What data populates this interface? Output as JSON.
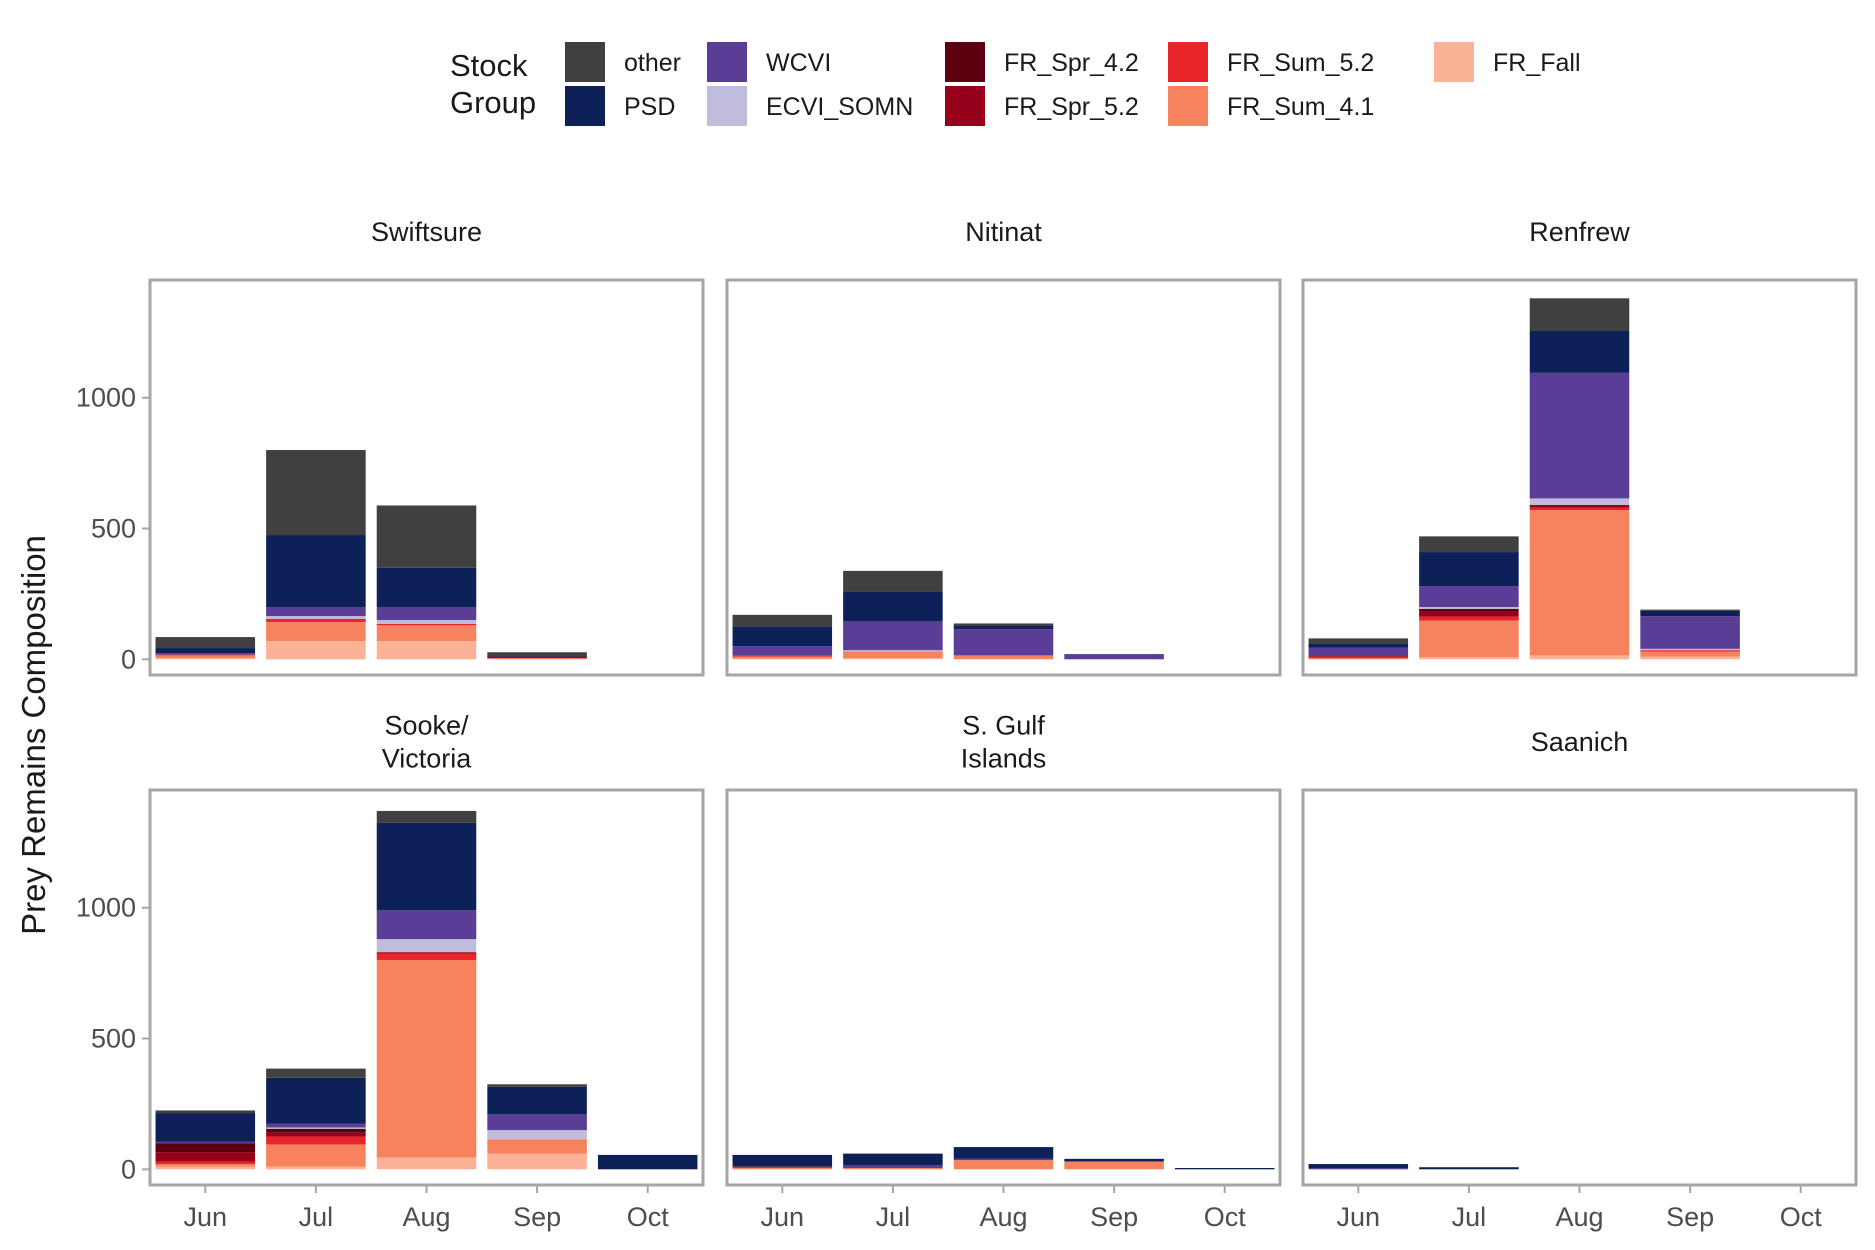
{
  "legend": {
    "title_line1": "Stock",
    "title_line2": "Group",
    "items": [
      {
        "key": "other",
        "label": "other",
        "color": "#404040"
      },
      {
        "key": "PSD",
        "label": "PSD",
        "color": "#0d2158"
      },
      {
        "key": "WCVI",
        "label": "WCVI",
        "color": "#5a3d96"
      },
      {
        "key": "ECVI_SOMN",
        "label": "ECVI_SOMN",
        "color": "#c0bcdc"
      },
      {
        "key": "FR_Spr_4.2",
        "label": "FR_Spr_4.2",
        "color": "#5c0010"
      },
      {
        "key": "FR_Spr_5.2",
        "label": "FR_Spr_5.2",
        "color": "#96001a"
      },
      {
        "key": "FR_Sum_5.2",
        "label": "FR_Sum_5.2",
        "color": "#e8262a"
      },
      {
        "key": "FR_Sum_4.1",
        "label": "FR_Sum_4.1",
        "color": "#f7825e"
      },
      {
        "key": "FR_Fall",
        "label": "FR_Fall",
        "color": "#fbb296"
      }
    ]
  },
  "chart_data": {
    "type": "bar",
    "stacked": true,
    "ylabel": "Prey Remains Composition",
    "xlabel": "",
    "categories": [
      "Jun",
      "Jul",
      "Aug",
      "Sep",
      "Oct"
    ],
    "ylim": [
      -60,
      1450
    ],
    "yticks": [
      0,
      500,
      1000
    ],
    "stack_order_bottom_to_top": [
      "FR_Fall",
      "FR_Sum_4.1",
      "FR_Sum_5.2",
      "FR_Spr_5.2",
      "FR_Spr_4.2",
      "ECVI_SOMN",
      "WCVI",
      "PSD",
      "other"
    ],
    "panels": [
      {
        "title_lines": [
          "Swiftsure"
        ],
        "series": {
          "Jun": {
            "FR_Fall": 5,
            "FR_Sum_4.1": 10,
            "FR_Sum_5.2": 3,
            "WCVI": 5,
            "PSD": 20,
            "other": 42
          },
          "Jul": {
            "FR_Fall": 70,
            "FR_Sum_4.1": 72,
            "FR_Sum_5.2": 13,
            "ECVI_SOMN": 10,
            "WCVI": 35,
            "PSD": 275,
            "other": 325
          },
          "Aug": {
            "FR_Fall": 70,
            "FR_Sum_4.1": 60,
            "FR_Sum_5.2": 5,
            "ECVI_SOMN": 15,
            "WCVI": 50,
            "PSD": 150,
            "other": 238
          },
          "Sep": {
            "FR_Sum_4.1": 5,
            "FR_Spr_5.2": 5,
            "PSD": 5,
            "other": 12
          }
        }
      },
      {
        "title_lines": [
          "Nitinat"
        ],
        "series": {
          "Jun": {
            "FR_Fall": 3,
            "FR_Sum_4.1": 7,
            "FR_Sum_5.2": 5,
            "WCVI": 35,
            "PSD": 75,
            "other": 45
          },
          "Jul": {
            "FR_Fall": 5,
            "FR_Sum_4.1": 25,
            "ECVI_SOMN": 5,
            "WCVI": 110,
            "PSD": 115,
            "other": 78
          },
          "Aug": {
            "FR_Sum_4.1": 15,
            "WCVI": 100,
            "PSD": 15,
            "other": 7
          },
          "Sep": {
            "WCVI": 20
          }
        }
      },
      {
        "title_lines": [
          "Renfrew"
        ],
        "series": {
          "Jun": {
            "FR_Sum_4.1": 5,
            "FR_Sum_5.2": 5,
            "FR_Spr_5.2": 5,
            "WCVI": 30,
            "PSD": 15,
            "other": 20
          },
          "Jul": {
            "FR_Fall": 8,
            "FR_Sum_4.1": 140,
            "FR_Sum_5.2": 15,
            "FR_Spr_5.2": 20,
            "FR_Spr_4.2": 10,
            "ECVI_SOMN": 7,
            "WCVI": 80,
            "PSD": 130,
            "other": 60
          },
          "Aug": {
            "FR_Fall": 15,
            "FR_Sum_4.1": 555,
            "FR_Sum_5.2": 10,
            "FR_Spr_5.2": 10,
            "ECVI_SOMN": 25,
            "WCVI": 480,
            "PSD": 160,
            "other": 125
          },
          "Sep": {
            "FR_Fall": 10,
            "FR_Sum_4.1": 20,
            "FR_Sum_5.2": 5,
            "ECVI_SOMN": 5,
            "WCVI": 125,
            "PSD": 20,
            "other": 5
          }
        }
      },
      {
        "title_lines": [
          "Sooke/",
          "Victoria"
        ],
        "series": {
          "Jun": {
            "FR_Fall": 10,
            "FR_Sum_4.1": 10,
            "FR_Sum_5.2": 10,
            "FR_Spr_5.2": 35,
            "FR_Spr_4.2": 35,
            "WCVI": 5,
            "PSD": 110,
            "other": 10
          },
          "Jul": {
            "FR_Fall": 10,
            "FR_Sum_4.1": 85,
            "FR_Sum_5.2": 30,
            "FR_Spr_5.2": 15,
            "FR_Spr_4.2": 15,
            "ECVI_SOMN": 5,
            "WCVI": 15,
            "PSD": 175,
            "other": 35
          },
          "Aug": {
            "FR_Fall": 45,
            "FR_Sum_4.1": 755,
            "FR_Sum_5.2": 25,
            "FR_Spr_5.2": 5,
            "ECVI_SOMN": 50,
            "WCVI": 110,
            "PSD": 335,
            "other": 45
          },
          "Sep": {
            "FR_Fall": 60,
            "FR_Sum_4.1": 55,
            "ECVI_SOMN": 35,
            "WCVI": 60,
            "PSD": 105,
            "other": 10
          },
          "Oct": {
            "PSD": 55
          }
        }
      },
      {
        "title_lines": [
          "S. Gulf",
          "Islands"
        ],
        "series": {
          "Jun": {
            "FR_Sum_4.1": 5,
            "FR_Sum_5.2": 5,
            "PSD": 45
          },
          "Jul": {
            "FR_Sum_4.1": 5,
            "WCVI": 10,
            "PSD": 45
          },
          "Aug": {
            "FR_Sum_4.1": 35,
            "WCVI": 5,
            "PSD": 45
          },
          "Sep": {
            "FR_Sum_4.1": 30,
            "PSD": 10
          },
          "Oct": {
            "PSD": 5
          }
        }
      },
      {
        "title_lines": [
          "Saanich"
        ],
        "series": {
          "Jun": {
            "WCVI": 5,
            "PSD": 15
          },
          "Jul": {
            "PSD": 8
          }
        }
      }
    ]
  }
}
